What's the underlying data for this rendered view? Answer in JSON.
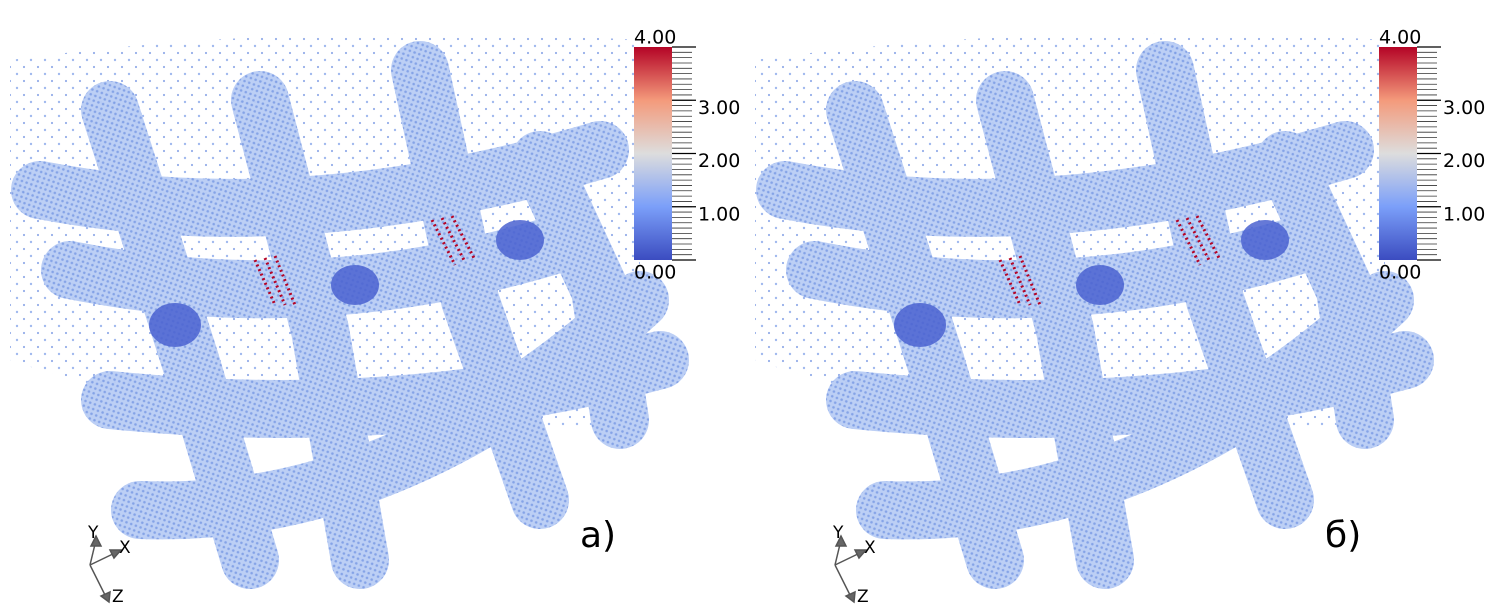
{
  "panels": [
    {
      "label": "а)",
      "colorbar": {
        "range": [
          0,
          4
        ],
        "ticks": [
          {
            "value": 4,
            "label": "4.00"
          },
          {
            "value": 3,
            "label": "3.00"
          },
          {
            "value": 2,
            "label": "2.00"
          },
          {
            "value": 1,
            "label": "1.00"
          },
          {
            "value": 0,
            "label": "0.00"
          }
        ]
      },
      "axes": {
        "y": "Y",
        "x": "X",
        "z": "Z"
      }
    },
    {
      "label": "б)",
      "colorbar": {
        "range": [
          0,
          4
        ],
        "ticks": [
          {
            "value": 4,
            "label": "4.00"
          },
          {
            "value": 3,
            "label": "3.00"
          },
          {
            "value": 2,
            "label": "2.00"
          },
          {
            "value": 1,
            "label": "1.00"
          },
          {
            "value": 0,
            "label": "0.00"
          }
        ]
      },
      "axes": {
        "y": "Y",
        "x": "X",
        "z": "Z"
      }
    }
  ]
}
